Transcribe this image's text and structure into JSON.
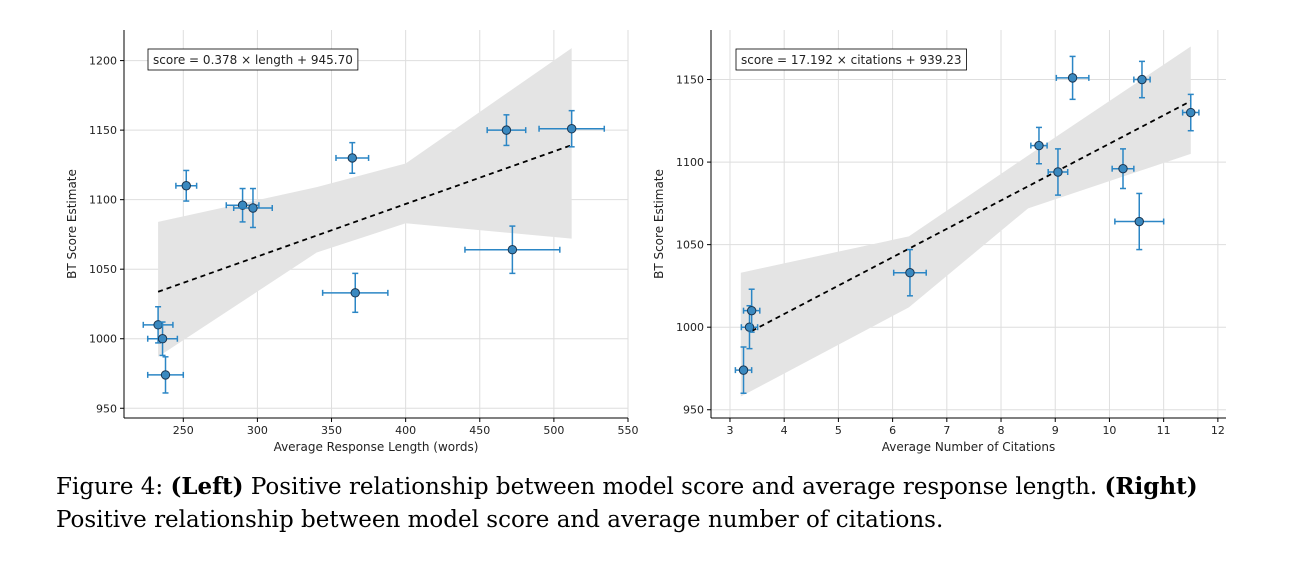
{
  "chart_data": [
    {
      "type": "scatter",
      "title": "",
      "xlabel": "Average Response Length (words)",
      "ylabel": "BT Score Estimate",
      "xlim": [
        210,
        550
      ],
      "ylim": [
        943,
        1222
      ],
      "xticks": [
        250,
        300,
        350,
        400,
        450,
        500,
        550
      ],
      "yticks": [
        950,
        1000,
        1050,
        1100,
        1150,
        1200
      ],
      "grid": true,
      "fit_label": "score = 0.378 × length + 945.70",
      "fit": {
        "slope": 0.378,
        "intercept": 945.7,
        "x_range": [
          233,
          512
        ]
      },
      "confidence_band": [
        [
          233,
          1084,
          987
        ],
        [
          340,
          1109,
          1062
        ],
        [
          400,
          1126,
          1083
        ],
        [
          512,
          1209,
          1072
        ]
      ],
      "points": [
        {
          "x": 233,
          "y": 1010,
          "xerr": 10,
          "yerr": 13
        },
        {
          "x": 236,
          "y": 1000,
          "xerr": 10,
          "yerr": 12
        },
        {
          "x": 238,
          "y": 974,
          "xerr": 12,
          "yerr": 13
        },
        {
          "x": 252,
          "y": 1110,
          "xerr": 7,
          "yerr": 11
        },
        {
          "x": 290,
          "y": 1096,
          "xerr": 11,
          "yerr": 12
        },
        {
          "x": 297,
          "y": 1094,
          "xerr": 13,
          "yerr": 14
        },
        {
          "x": 364,
          "y": 1130,
          "xerr": 11,
          "yerr": 11
        },
        {
          "x": 366,
          "y": 1033,
          "xerr": 22,
          "yerr": 14
        },
        {
          "x": 468,
          "y": 1150,
          "xerr": 13,
          "yerr": 11
        },
        {
          "x": 472,
          "y": 1064,
          "xerr": 32,
          "yerr": 17
        },
        {
          "x": 512,
          "y": 1151,
          "xerr": 22,
          "yerr": 13
        }
      ]
    },
    {
      "type": "scatter",
      "title": "",
      "xlabel": "Average Number of Citations",
      "ylabel": "BT Score Estimate",
      "xlim": [
        2.65,
        12.15
      ],
      "ylim": [
        945,
        1180
      ],
      "xticks": [
        3,
        4,
        5,
        6,
        7,
        8,
        9,
        10,
        11,
        12
      ],
      "yticks": [
        950,
        1000,
        1050,
        1100,
        1150
      ],
      "grid": true,
      "fit_label": "score = 17.192 × citations + 939.23",
      "fit": {
        "slope": 17.192,
        "intercept": 939.23,
        "x_range": [
          3.4,
          11.5
        ]
      },
      "confidence_band": [
        [
          3.2,
          1033,
          958
        ],
        [
          6.3,
          1055,
          1012
        ],
        [
          8.5,
          1104,
          1072
        ],
        [
          11.5,
          1170,
          1105
        ]
      ],
      "points": [
        {
          "x": 3.25,
          "y": 974,
          "xerr": 0.15,
          "yerr": 14
        },
        {
          "x": 3.36,
          "y": 1000,
          "xerr": 0.15,
          "yerr": 13
        },
        {
          "x": 3.4,
          "y": 1010,
          "xerr": 0.15,
          "yerr": 13
        },
        {
          "x": 6.32,
          "y": 1033,
          "xerr": 0.3,
          "yerr": 14
        },
        {
          "x": 8.7,
          "y": 1110,
          "xerr": 0.15,
          "yerr": 11
        },
        {
          "x": 9.05,
          "y": 1094,
          "xerr": 0.18,
          "yerr": 14
        },
        {
          "x": 9.32,
          "y": 1151,
          "xerr": 0.3,
          "yerr": 13
        },
        {
          "x": 10.25,
          "y": 1096,
          "xerr": 0.2,
          "yerr": 12
        },
        {
          "x": 10.55,
          "y": 1064,
          "xerr": 0.45,
          "yerr": 17
        },
        {
          "x": 10.6,
          "y": 1150,
          "xerr": 0.15,
          "yerr": 11
        },
        {
          "x": 11.5,
          "y": 1130,
          "xerr": 0.15,
          "yerr": 11
        }
      ]
    }
  ],
  "caption": {
    "figure_label": "Figure 4:",
    "left_tag": "(Left)",
    "left_text": "Positive relationship between model score and average response length.",
    "right_tag": "(Right)",
    "right_text": "Positive relationship between model score and average number of citations."
  },
  "colors": {
    "point_fill": "#3a89c0",
    "point_edge": "#1a3550",
    "error_bar": "#2b86c5",
    "band": "#e4e4e4",
    "grid": "#dedede",
    "fit_line": "#000000"
  }
}
